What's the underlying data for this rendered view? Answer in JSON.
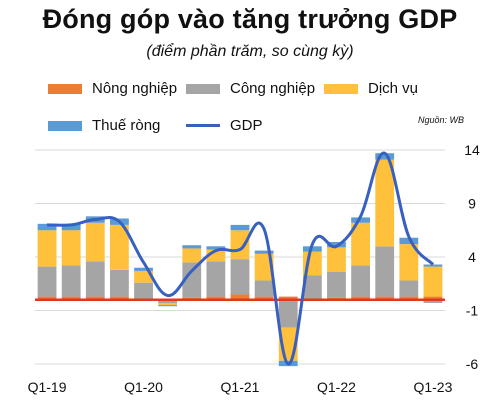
{
  "title": "Đóng góp vào tăng trưởng GDP",
  "subtitle": "(điểm phần trăm, so cùng kỳ)",
  "source": "Nguồn: WB",
  "colors": {
    "nong_nghiep": "#ED7D31",
    "cong_nghiep": "#A5A5A5",
    "dich_vu": "#FFC03C",
    "thue_rong": "#5B9BD5",
    "gdp": "#3760C0",
    "zero_line": "#E03A1E",
    "grid": "#D9D9D9"
  },
  "legend": [
    {
      "key": "nong_nghiep",
      "label": "Nông nghiệp",
      "kind": "box"
    },
    {
      "key": "cong_nghiep",
      "label": "Công nghiệp",
      "kind": "box"
    },
    {
      "key": "dich_vu",
      "label": "Dịch vụ",
      "kind": "box"
    },
    {
      "key": "thue_rong",
      "label": "Thuế ròng",
      "kind": "box"
    },
    {
      "key": "gdp",
      "label": "GDP",
      "kind": "line"
    }
  ],
  "chart_data": {
    "type": "bar",
    "stacked": true,
    "title": "Đóng góp vào tăng trưởng GDP",
    "subtitle": "(điểm phần trăm, so cùng kỳ)",
    "categories": [
      "Q1-19",
      "Q2-19",
      "Q3-19",
      "Q4-19",
      "Q1-20",
      "Q2-20",
      "Q3-20",
      "Q4-20",
      "Q1-21",
      "Q2-21",
      "Q3-21",
      "Q4-21",
      "Q1-22",
      "Q2-22",
      "Q3-22",
      "Q4-22",
      "Q1-23"
    ],
    "x_tick_labels": [
      "Q1-19",
      "Q1-20",
      "Q1-21",
      "Q1-22",
      "Q1-23"
    ],
    "series": [
      {
        "name": "Nông nghiệp",
        "values": [
          0.3,
          0.3,
          0.3,
          0.3,
          0.1,
          0.1,
          0.2,
          0.3,
          0.5,
          0.3,
          0.3,
          0.1,
          0.2,
          0.3,
          0.3,
          0.3,
          0.3
        ]
      },
      {
        "name": "Công nghiệp",
        "values": [
          2.8,
          2.9,
          3.3,
          2.5,
          1.5,
          -0.3,
          3.3,
          3.3,
          3.3,
          1.5,
          -2.6,
          2.2,
          2.4,
          2.9,
          4.7,
          1.5,
          -0.3
        ]
      },
      {
        "name": "Dịch vụ",
        "values": [
          3.4,
          3.3,
          3.6,
          4.2,
          1.1,
          -0.2,
          1.3,
          1.1,
          2.7,
          2.5,
          -3.1,
          2.2,
          2.3,
          4.0,
          8.1,
          3.4,
          2.8
        ]
      },
      {
        "name": "Thuế ròng",
        "values": [
          0.6,
          0.6,
          0.6,
          0.6,
          0.3,
          -0.1,
          0.3,
          0.3,
          0.5,
          0.3,
          -0.5,
          0.5,
          0.5,
          0.5,
          0.6,
          0.6,
          0.2
        ]
      },
      {
        "name": "GDP",
        "type": "line",
        "values": [
          7.0,
          7.0,
          7.5,
          7.3,
          3.5,
          0.4,
          2.7,
          4.6,
          4.7,
          6.6,
          -6.0,
          5.2,
          5.0,
          7.8,
          13.7,
          5.9,
          3.3
        ]
      }
    ],
    "ylim": [
      -6,
      14
    ],
    "y_ticks": [
      14,
      9,
      4,
      -1,
      -6
    ],
    "grid": true,
    "legend_position": "top"
  }
}
